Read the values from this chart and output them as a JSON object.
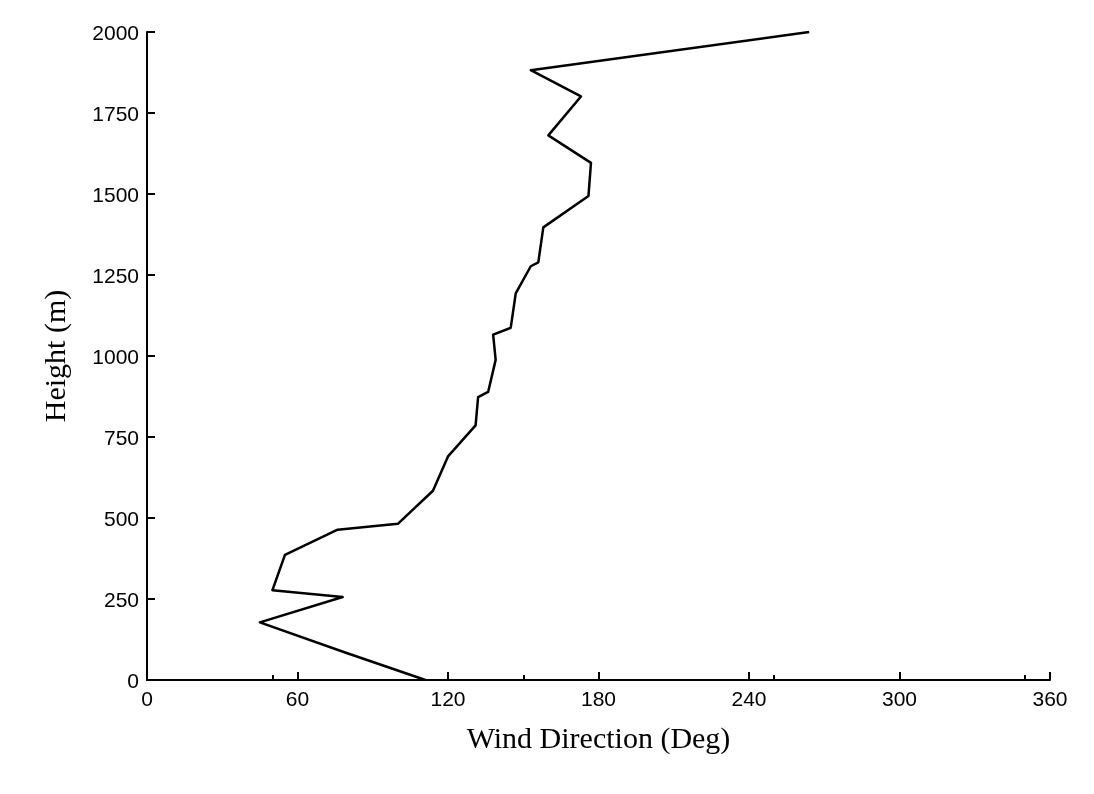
{
  "chart_data": {
    "type": "line",
    "xlabel": "Wind Direction (Deg)",
    "ylabel": "Height (m)",
    "xlim": [
      0,
      360
    ],
    "xticks": [
      0,
      60,
      120,
      180,
      240,
      300,
      360
    ],
    "ylim": [
      0,
      2000
    ],
    "yticks": [
      0,
      250,
      500,
      750,
      1000,
      1250,
      1500,
      1750,
      2000
    ],
    "grid": false,
    "marker": "none",
    "line_style": "solid",
    "series": [
      {
        "color": "#000000",
        "x": [
          111,
          79,
          45,
          78,
          50,
          55,
          76,
          100,
          114,
          120,
          131,
          132,
          136,
          139,
          138,
          145,
          147,
          153,
          156,
          158,
          176,
          177,
          160,
          173,
          153,
          264
        ],
        "values": [
          0,
          85,
          178,
          256,
          277,
          386,
          464,
          482,
          584,
          690,
          786,
          873,
          889,
          988,
          1066,
          1087,
          1193,
          1277,
          1289,
          1397,
          1494,
          1596,
          1681,
          1801,
          1882,
          2000
        ]
      }
    ]
  }
}
